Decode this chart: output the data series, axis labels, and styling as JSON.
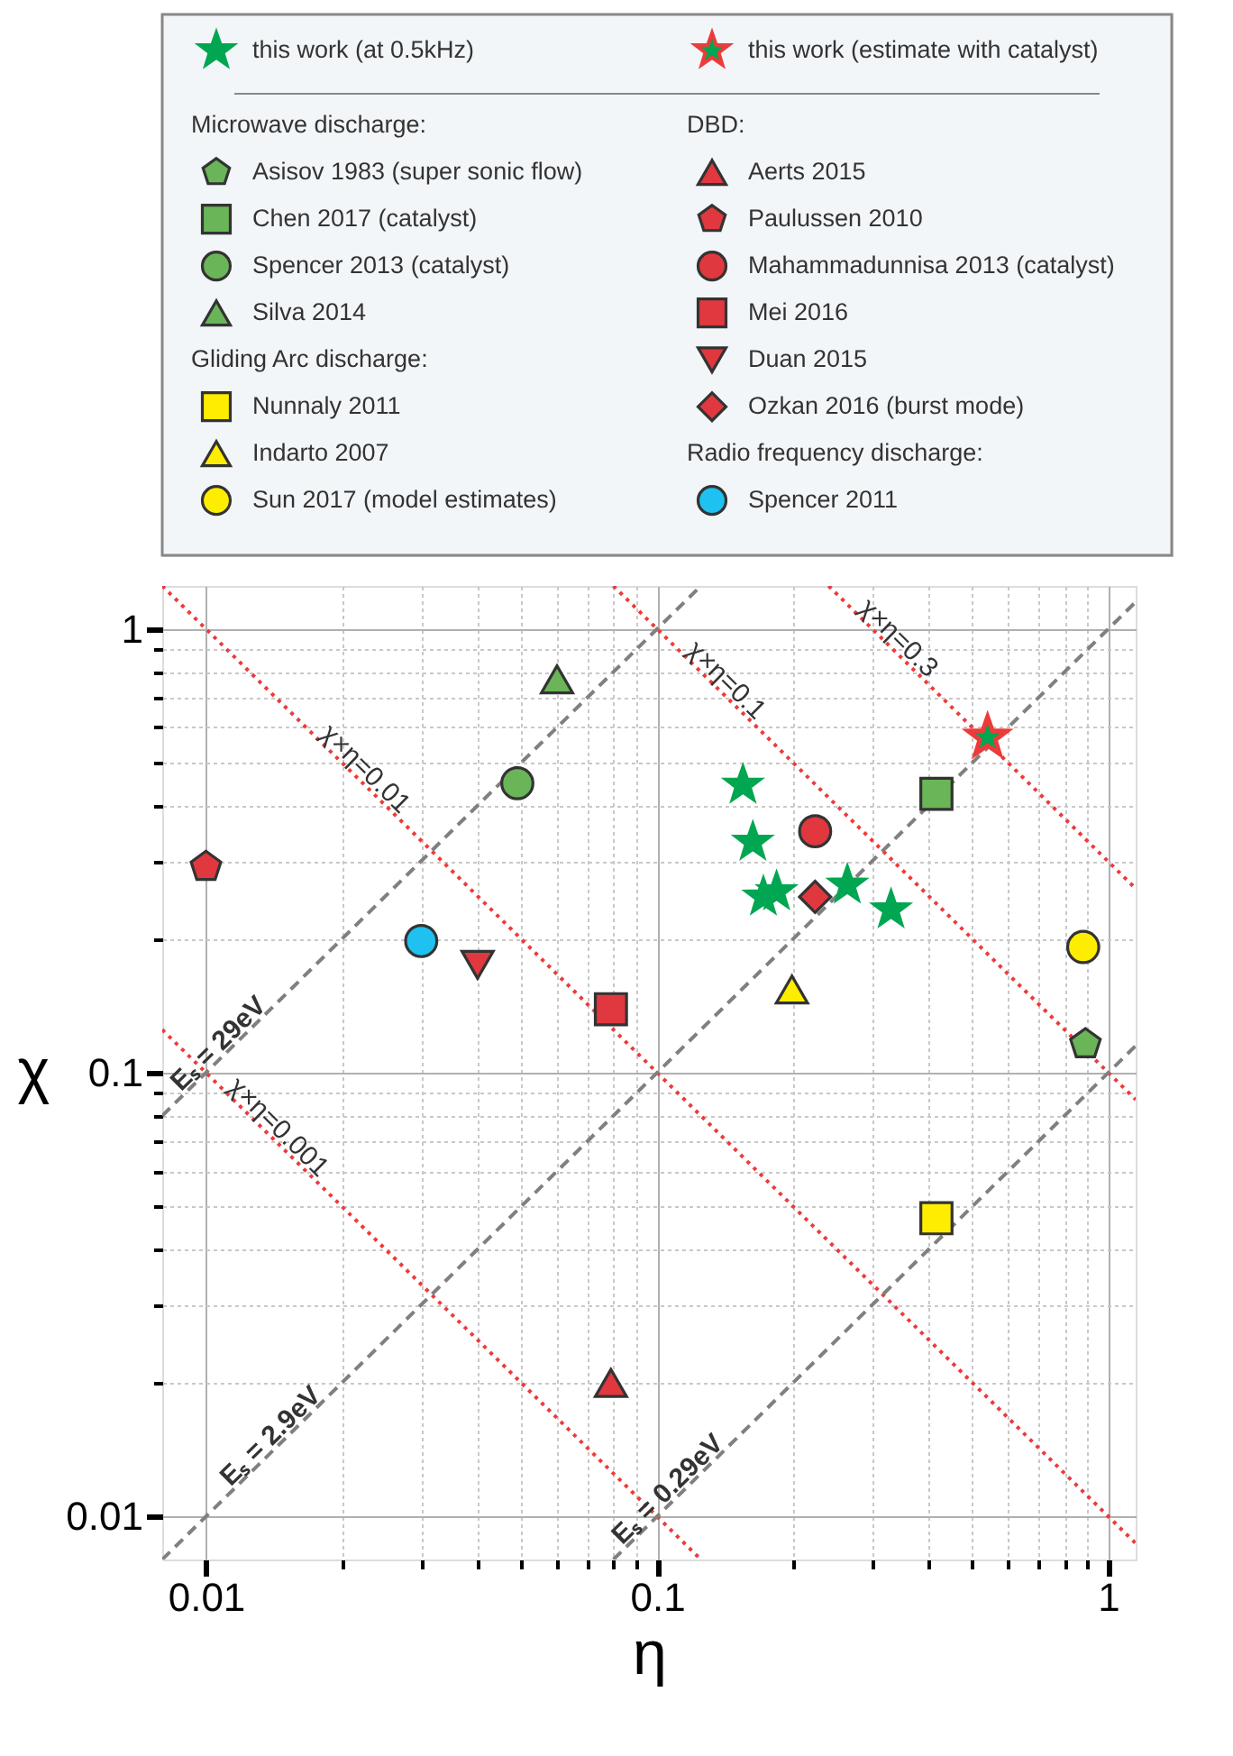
{
  "chart_data": {
    "type": "scatter",
    "xlabel": "η",
    "ylabel": "χ",
    "log": "xy",
    "grid": true,
    "legend": "top",
    "xlim": [
      0.008,
      1.15
    ],
    "ylim": [
      0.008,
      1.25
    ],
    "xticks": [
      0.01,
      {
        "value": 0.02,
        "label": null
      },
      {
        "value": 0.03,
        "label": null
      },
      {
        "value": 0.04,
        "label": null
      },
      {
        "value": 0.05,
        "label": null
      },
      {
        "value": 0.06,
        "label": null
      },
      {
        "value": 0.07,
        "label": null
      },
      {
        "value": 0.08,
        "label": null
      },
      {
        "value": 0.09,
        "label": null
      },
      0.1,
      {
        "value": 0.2,
        "label": null
      },
      {
        "value": 0.3,
        "label": null
      },
      {
        "value": 0.4,
        "label": null
      },
      {
        "value": 0.5,
        "label": null
      },
      {
        "value": 0.6,
        "label": null
      },
      {
        "value": 0.7,
        "label": null
      },
      {
        "value": 0.8,
        "label": null
      },
      {
        "value": 0.9,
        "label": null
      },
      1
    ],
    "yticks": [
      0.01,
      {
        "value": 0.02,
        "label": null
      },
      {
        "value": 0.03,
        "label": null
      },
      {
        "value": 0.04,
        "label": null
      },
      {
        "value": 0.05,
        "label": null
      },
      {
        "value": 0.06,
        "label": null
      },
      {
        "value": 0.07,
        "label": null
      },
      {
        "value": 0.08,
        "label": null
      },
      {
        "value": 0.09,
        "label": null
      },
      0.1,
      {
        "value": 0.2,
        "label": null
      },
      {
        "value": 0.3,
        "label": null
      },
      {
        "value": 0.4,
        "label": null
      },
      {
        "value": 0.5,
        "label": null
      },
      {
        "value": 0.6,
        "label": null
      },
      {
        "value": 0.7,
        "label": null
      },
      {
        "value": 0.8,
        "label": null
      },
      {
        "value": 0.9,
        "label": null
      },
      1
    ],
    "annotations": [
      "Microwave discharge:",
      "Gliding Arc discharge:",
      "DBD:",
      "Radio frequency discharge:"
    ],
    "series": [
      {
        "name": "this work (at 0.5kHz)",
        "marker": "star",
        "color": "#00a651",
        "x": [
          0.155,
          0.163,
          0.172,
          0.184,
          0.264,
          0.33
        ],
        "values": [
          0.445,
          0.331,
          0.249,
          0.256,
          0.265,
          0.233
        ]
      },
      {
        "name": "this work (estimate with catalyst)",
        "marker": "star",
        "color": "#ee3a3a",
        "x": [
          0.54
        ],
        "values": [
          0.57
        ]
      },
      {
        "name": "Asisov 1983 (super sonic flow)",
        "color": "#6ab557",
        "x": [
          0.89
        ],
        "values": [
          0.116
        ]
      },
      {
        "name": "Chen 2017 (catalyst)",
        "marker": "square",
        "color": "#6ab557",
        "x": [
          0.416
        ],
        "values": [
          0.425
        ]
      },
      {
        "name": "Spencer 2013 (catalyst)",
        "marker": "circle",
        "color": "#6ab557",
        "x": [
          0.049
        ],
        "values": [
          0.449
        ]
      },
      {
        "name": "Silva 2014",
        "marker": "triangle",
        "color": "#6ab557",
        "x": [
          0.06
        ],
        "values": [
          0.77
        ]
      },
      {
        "name": "Nunnaly 2011",
        "marker": "square",
        "color": "#ffed00",
        "x": [
          0.416
        ],
        "values": [
          0.047
        ]
      },
      {
        "name": "Indarto 2007",
        "marker": "triangle",
        "color": "#ffed00",
        "x": [
          0.199
        ],
        "values": [
          0.154
        ]
      },
      {
        "name": "Sun 2017 (model estimates)",
        "marker": "circle",
        "color": "#ffed00",
        "x": [
          0.88
        ],
        "values": [
          0.192
        ]
      },
      {
        "name": "Aerts 2015",
        "marker": "triangle",
        "color": "#e0383e",
        "x": [
          0.079
        ],
        "values": [
          0.02
        ]
      },
      {
        "name": "Paulussen 2010",
        "color": "#e0383e",
        "x": [
          0.01
        ],
        "values": [
          0.291
        ]
      },
      {
        "name": "Mahammadunnisa 2013 (catalyst)",
        "marker": "circle",
        "color": "#e0383e",
        "x": [
          0.224
        ],
        "values": [
          0.35
        ]
      },
      {
        "name": "Mei 2016",
        "marker": "square",
        "color": "#e0383e",
        "x": [
          0.079
        ],
        "values": [
          0.139
        ]
      },
      {
        "name": "Duan 2015",
        "marker": "triangle-down",
        "color": "#e0383e",
        "x": [
          0.04
        ],
        "values": [
          0.175
        ]
      },
      {
        "name": "Ozkan 2016 (burst mode)",
        "marker": "diamond",
        "color": "#e0383e",
        "x": [
          0.224
        ],
        "values": [
          0.249
        ]
      },
      {
        "name": "Spencer 2011",
        "marker": "circle",
        "color": "#1ec1ef",
        "x": [
          0.03
        ],
        "values": [
          0.198
        ]
      },
      {
        "name": "χ×η=0.001",
        "type": "line",
        "line_style": "dotted",
        "color": "#ee3a3a",
        "x": [
          0.008,
          0.125
        ],
        "values": [
          0.125,
          0.008
        ]
      },
      {
        "name": "χ×η=0.01",
        "type": "line",
        "line_style": "dotted",
        "color": "#ee3a3a",
        "x": [
          0.008,
          1.15
        ],
        "values": [
          1.25,
          0.0087
        ]
      },
      {
        "name": "χ×η=0.1",
        "type": "line",
        "line_style": "dotted",
        "color": "#ee3a3a",
        "x": [
          0.08,
          1.15
        ],
        "values": [
          1.25,
          0.087
        ]
      },
      {
        "name": "χ×η=0.3",
        "type": "line",
        "line_style": "dotted",
        "color": "#ee3a3a",
        "x": [
          0.24,
          1.15
        ],
        "values": [
          1.25,
          0.26
        ]
      },
      {
        "name": "Eₛ = 29eV",
        "type": "line",
        "line_style": "dashed",
        "color": "#808080",
        "x": [
          0.008,
          0.125
        ],
        "values": [
          0.08,
          1.25
        ]
      },
      {
        "name": "Eₛ = 2.9eV",
        "type": "line",
        "line_style": "dashed",
        "color": "#808080",
        "x": [
          0.008,
          1.15
        ],
        "values": [
          0.008,
          1.15
        ]
      },
      {
        "name": "Eₛ = 0.29eV",
        "type": "line",
        "line_style": "dashed",
        "color": "#808080",
        "x": [
          0.08,
          1.15
        ],
        "values": [
          0.008,
          0.115
        ]
      }
    ]
  }
}
